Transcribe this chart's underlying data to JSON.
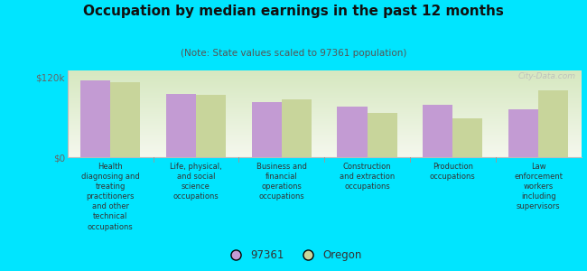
{
  "title": "Occupation by median earnings in the past 12 months",
  "subtitle": "(Note: State values scaled to 97361 population)",
  "categories": [
    "Health\ndiagnosing and\ntreating\npractitioners\nand other\ntechnical\noccupations",
    "Life, physical,\nand social\nscience\noccupations",
    "Business and\nfinancial\noperations\noccupations",
    "Construction\nand extraction\noccupations",
    "Production\noccupations",
    "Law\nenforcement\nworkers\nincluding\nsupervisors"
  ],
  "values_97361": [
    115000,
    95000,
    82000,
    76000,
    78000,
    72000
  ],
  "values_oregon": [
    112000,
    94000,
    86000,
    67000,
    58000,
    100000
  ],
  "ylim": [
    0,
    130000
  ],
  "yticks": [
    0,
    120000
  ],
  "ytick_labels": [
    "$0",
    "$120k"
  ],
  "color_97361": "#c39bd3",
  "color_oregon": "#c8d59b",
  "background_color": "#00e5ff",
  "plot_bg_top": "#d6e8c0",
  "plot_bg_bottom": "#f5f8ee",
  "watermark": "City-Data.com",
  "legend_97361": "97361",
  "legend_oregon": "Oregon",
  "bar_width": 0.35
}
